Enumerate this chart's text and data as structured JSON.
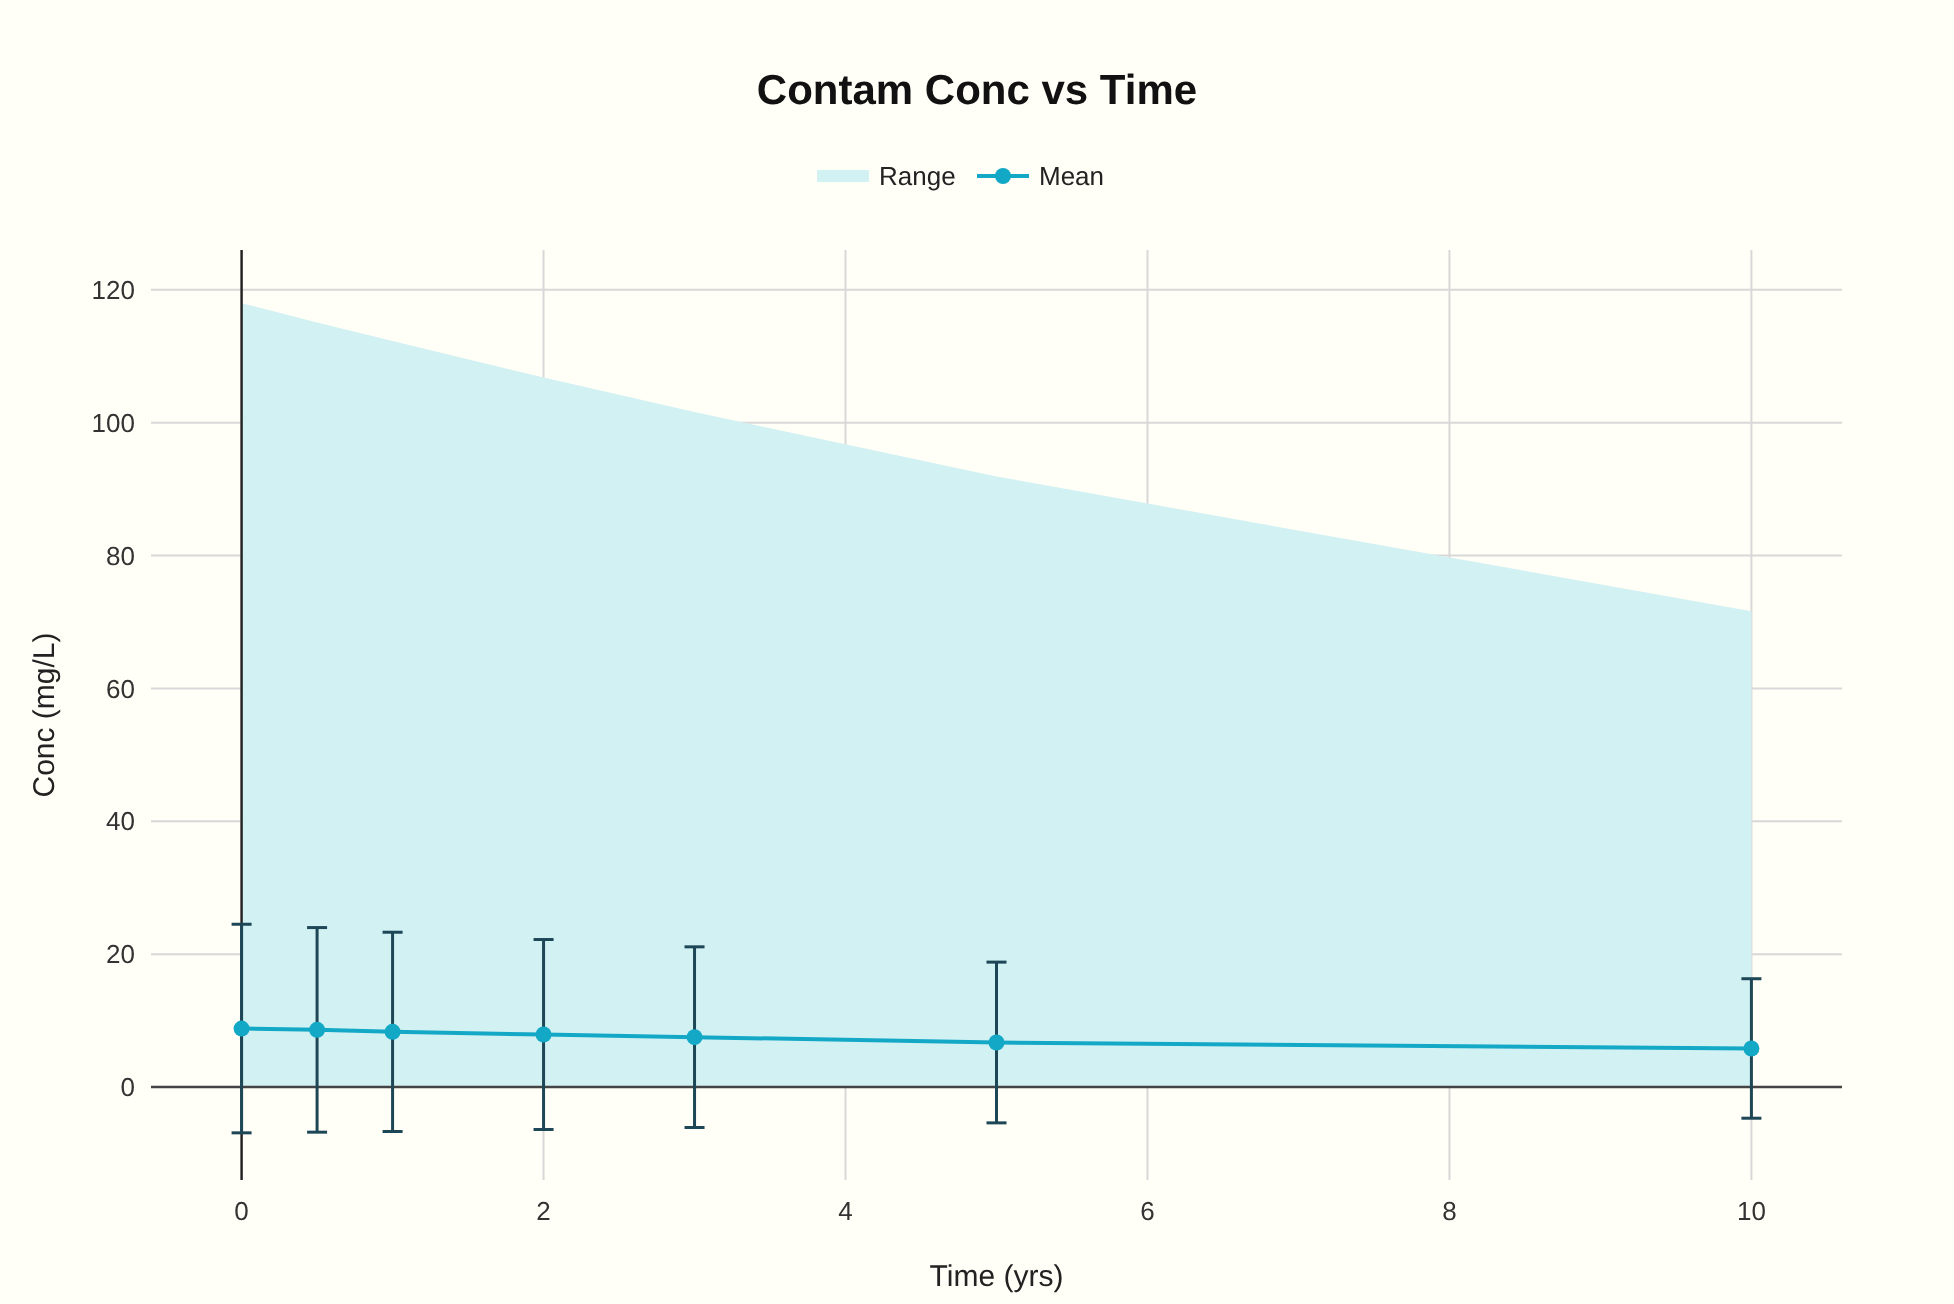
{
  "chart_data": {
    "type": "line",
    "title": "Contam Conc vs Time",
    "xlabel": "Time (yrs)",
    "ylabel": "Conc (mg/L)",
    "x": [
      0,
      0.5,
      1,
      2,
      3,
      5,
      10
    ],
    "series": [
      {
        "name": "Range",
        "type": "area",
        "color": "#d2f1f3",
        "values": [
          118,
          115.1,
          112.3,
          106.8,
          101.6,
          91.9,
          71.6
        ]
      },
      {
        "name": "Mean",
        "marker": "circle",
        "color": "#13a8c6",
        "values": [
          8.8,
          8.6,
          8.3,
          7.9,
          7.5,
          6.7,
          5.8
        ],
        "errors": [
          15.7,
          15.4,
          15.0,
          14.3,
          13.6,
          12.1,
          10.5
        ]
      }
    ],
    "xlim": [
      -0.6,
      10.6
    ],
    "xticks": [
      0,
      2,
      4,
      6,
      8,
      10
    ],
    "ylim": [
      -14,
      126
    ],
    "yticks": [
      0,
      20,
      40,
      60,
      80,
      100,
      120
    ],
    "grid": true,
    "legend": "top",
    "line_style": "solid"
  }
}
